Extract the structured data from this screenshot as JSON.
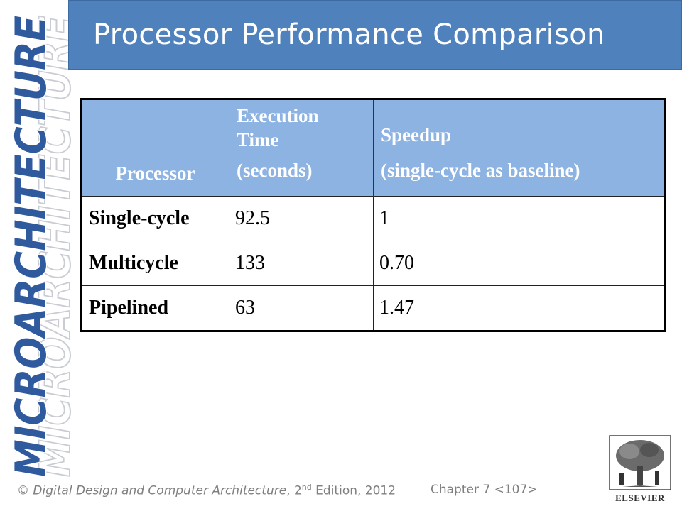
{
  "side_banner": {
    "text": "MICROARCHITECTURE",
    "color": "#2f5a9e"
  },
  "title": "Processor Performance Comparison",
  "table": {
    "headers": {
      "processor": "Processor",
      "exec_line1": "Execution",
      "exec_line2": "Time",
      "exec_line3": "(seconds)",
      "speedup_line1": "Speedup",
      "speedup_line2": "(single-cycle as baseline)"
    },
    "rows": [
      {
        "processor": "Single-cycle",
        "time": "92.5",
        "speedup": "1"
      },
      {
        "processor": "Multicycle",
        "time": "133",
        "speedup": "0.70"
      },
      {
        "processor": "Pipelined",
        "time": "63",
        "speedup": "1.47"
      }
    ]
  },
  "footer": {
    "copyright": "© ",
    "book": "Digital Design and Computer Architecture",
    "edition_num": ", 2",
    "edition_sup": "nd",
    "edition_rest": " Edition, 2012",
    "chapter": "Chapter 7 <107>"
  },
  "logo": {
    "text": "ELSEVIER"
  },
  "colors": {
    "title_bar": "#4f81bd",
    "header_fill": "#8db3e2",
    "footer_text": "#7f7f7f"
  }
}
